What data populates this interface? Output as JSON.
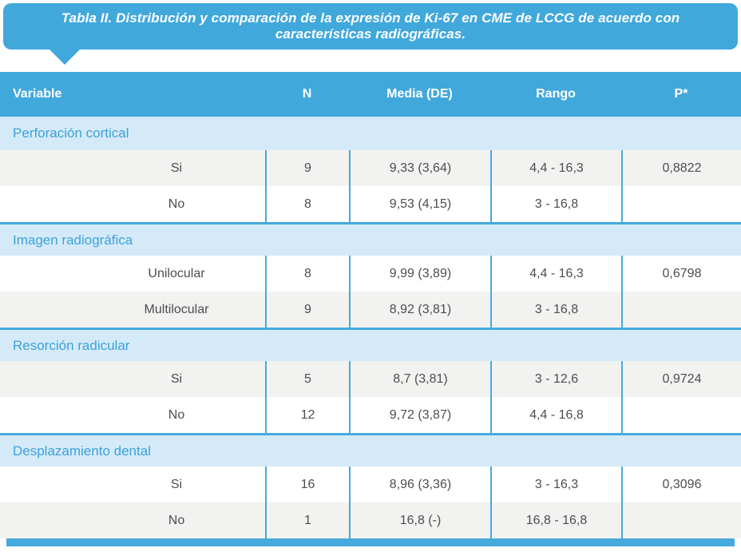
{
  "title": "Tabla II. Distribución y comparación de la expresión de Ki-67 en CME de LCCG de acuerdo con características radiográficas.",
  "colors": {
    "primary_blue": "#41A8DC",
    "section_light_blue": "#D5EAF8",
    "shaded_row_gray": "#F2F2F0",
    "separator_blue": "#45AADD",
    "body_text": "#4D4D4F"
  },
  "table": {
    "columns": [
      "Variable",
      "N",
      "Media (DE)",
      "Rango",
      "P*"
    ],
    "groups": [
      {
        "label": "Perforación cortical",
        "rows": [
          {
            "variable": "Si",
            "n": "9",
            "media": "9,33 (3,64)",
            "rango": "4,4 - 16,3",
            "p": "0,8822"
          },
          {
            "variable": "No",
            "n": "8",
            "media": "9,53 (4,15)",
            "rango": "3 - 16,8",
            "p": ""
          }
        ]
      },
      {
        "label": "Imagen radiográfica",
        "rows": [
          {
            "variable": "Unilocular",
            "n": "8",
            "media": "9,99 (3,89)",
            "rango": "4,4 - 16,3",
            "p": "0,6798"
          },
          {
            "variable": "Multilocular",
            "n": "9",
            "media": "8,92 (3,81)",
            "rango": "3 - 16,8",
            "p": ""
          }
        ]
      },
      {
        "label": "Resorción radicular",
        "rows": [
          {
            "variable": "Si",
            "n": "5",
            "media": "8,7 (3,81)",
            "rango": "3 - 12,6",
            "p": "0,9724"
          },
          {
            "variable": "No",
            "n": "12",
            "media": "9,72 (3,87)",
            "rango": "4,4 - 16,8",
            "p": ""
          }
        ]
      },
      {
        "label": "Desplazamiento dental",
        "rows": [
          {
            "variable": "Si",
            "n": "16",
            "media": "8,96 (3,36)",
            "rango": "3 - 16,3",
            "p": "0,3096"
          },
          {
            "variable": "No",
            "n": "1",
            "media": "16,8 (-)",
            "rango": "16,8 - 16,8",
            "p": ""
          }
        ]
      }
    ]
  }
}
